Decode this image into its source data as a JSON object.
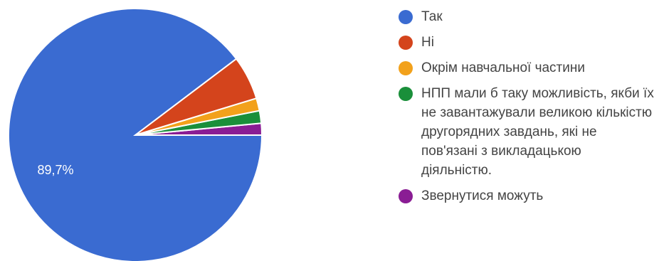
{
  "chart_data": {
    "type": "pie",
    "slices": [
      {
        "label": "Так",
        "value": 89.7,
        "color": "#3a6bd1",
        "data_label": "89,7%"
      },
      {
        "label": "Ні",
        "value": 5.6,
        "color": "#d4441c",
        "data_label": ""
      },
      {
        "label": "Окрім навчальної частини",
        "value": 1.6,
        "color": "#f2a11b",
        "data_label": ""
      },
      {
        "label": "НПП мали б таку можливість, якби їх не завантажували великою кількістю другорядних завдань, які не пов'язані з викладацькою діяльністю.",
        "value": 1.6,
        "color": "#1a8f3a",
        "data_label": ""
      },
      {
        "label": "Звернутися можуть",
        "value": 1.5,
        "color": "#8a1d94",
        "data_label": ""
      }
    ],
    "legend_position": "right"
  }
}
